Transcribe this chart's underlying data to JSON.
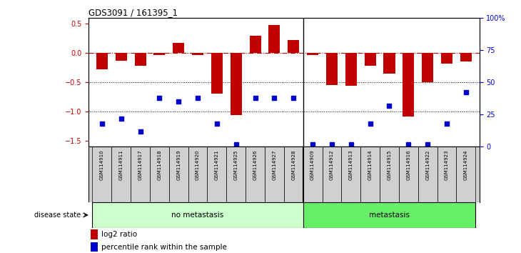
{
  "title": "GDS3091 / 161395_1",
  "samples": [
    "GSM114910",
    "GSM114911",
    "GSM114917",
    "GSM114918",
    "GSM114919",
    "GSM114920",
    "GSM114921",
    "GSM114925",
    "GSM114926",
    "GSM114927",
    "GSM114928",
    "GSM114909",
    "GSM114912",
    "GSM114913",
    "GSM114914",
    "GSM114915",
    "GSM114916",
    "GSM114922",
    "GSM114923",
    "GSM114924"
  ],
  "log2_ratio": [
    -0.28,
    -0.13,
    -0.22,
    -0.04,
    0.17,
    -0.04,
    -0.7,
    -1.06,
    0.29,
    0.47,
    0.22,
    -0.04,
    -0.55,
    -0.56,
    -0.22,
    -0.35,
    -1.08,
    -0.5,
    -0.18,
    -0.15
  ],
  "percentile": [
    18,
    22,
    12,
    38,
    35,
    38,
    18,
    2,
    38,
    38,
    38,
    2,
    2,
    2,
    18,
    32,
    2,
    2,
    18,
    42
  ],
  "no_metastasis_count": 11,
  "bar_color": "#C00000",
  "dot_color": "#0000CC",
  "no_meta_color": "#CCFFCC",
  "meta_color": "#66EE66",
  "bg_color": "#FFFFFF",
  "ylim_left": [
    -1.6,
    0.6
  ],
  "ylim_right": [
    0,
    100
  ],
  "yticks_left": [
    -1.5,
    -1.0,
    -0.5,
    0.0,
    0.5
  ],
  "yticks_right": [
    0,
    25,
    50,
    75,
    100
  ],
  "ytick_right_labels": [
    "0",
    "25",
    "50",
    "75",
    "100%"
  ]
}
